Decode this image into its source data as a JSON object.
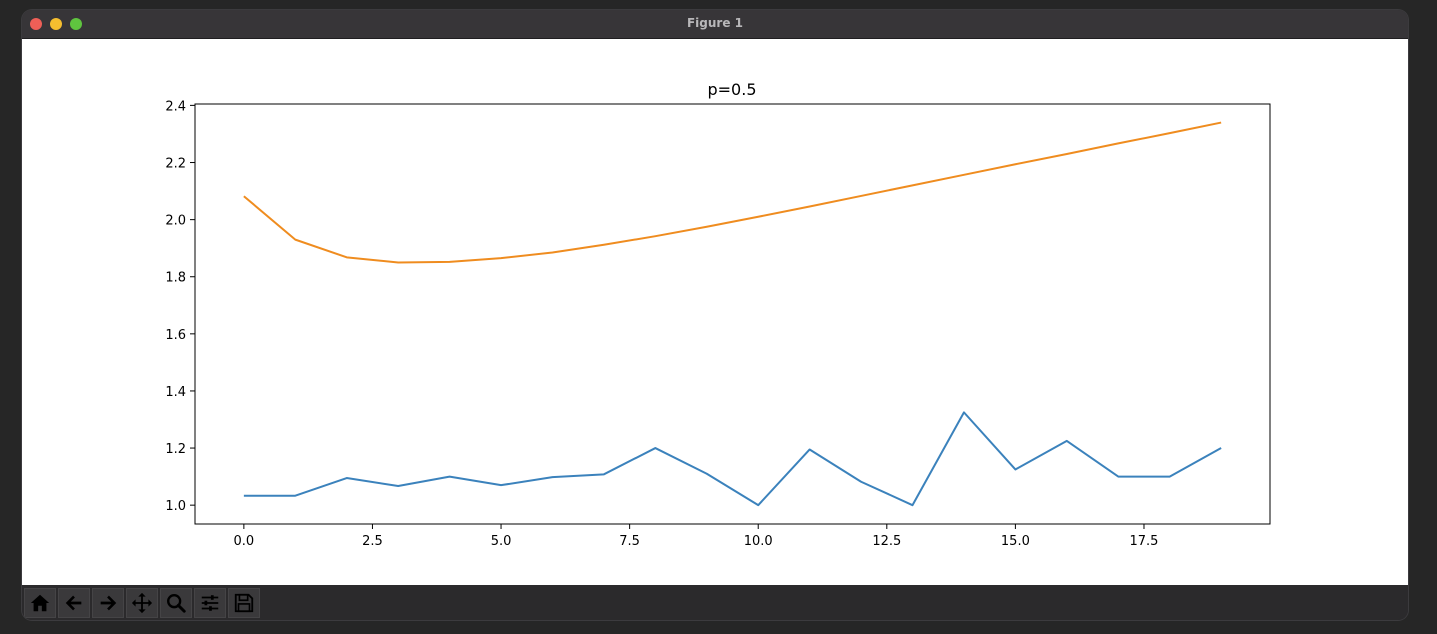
{
  "window": {
    "title": "Figure 1"
  },
  "toolbar": {
    "buttons": [
      {
        "name": "home-icon"
      },
      {
        "name": "back-arrow-icon"
      },
      {
        "name": "forward-arrow-icon"
      },
      {
        "name": "pan-move-icon"
      },
      {
        "name": "zoom-magnifier-icon"
      },
      {
        "name": "configure-subplots-icon"
      },
      {
        "name": "save-floppy-icon"
      }
    ]
  },
  "chart_data": {
    "type": "line",
    "title": "p=0.5",
    "xlabel": "",
    "ylabel": "",
    "xlim": [
      -0.95,
      19.95
    ],
    "ylim": [
      0.934,
      2.405
    ],
    "xticks": [
      "0.0",
      "2.5",
      "5.0",
      "7.5",
      "10.0",
      "12.5",
      "15.0",
      "17.5"
    ],
    "yticks": [
      "1.0",
      "1.2",
      "1.4",
      "1.6",
      "1.8",
      "2.0",
      "2.2",
      "2.4"
    ],
    "grid": false,
    "x": [
      0,
      1,
      2,
      3,
      4,
      5,
      6,
      7,
      8,
      9,
      10,
      11,
      12,
      13,
      14,
      15,
      16,
      17,
      18,
      19
    ],
    "series": [
      {
        "color": "#3b82bc",
        "values": [
          1.033,
          1.033,
          1.095,
          1.067,
          1.1,
          1.07,
          1.098,
          1.108,
          1.2,
          1.11,
          1.0,
          1.195,
          1.082,
          1.0,
          1.325,
          1.125,
          1.225,
          1.1,
          1.1,
          1.2
        ]
      },
      {
        "color": "#ef8c1f",
        "values": [
          2.082,
          1.93,
          1.868,
          1.85,
          1.852,
          1.865,
          1.885,
          1.912,
          1.942,
          1.975,
          2.01,
          2.046,
          2.083,
          2.12,
          2.157,
          2.194,
          2.23,
          2.267,
          2.303,
          2.34
        ]
      }
    ]
  }
}
